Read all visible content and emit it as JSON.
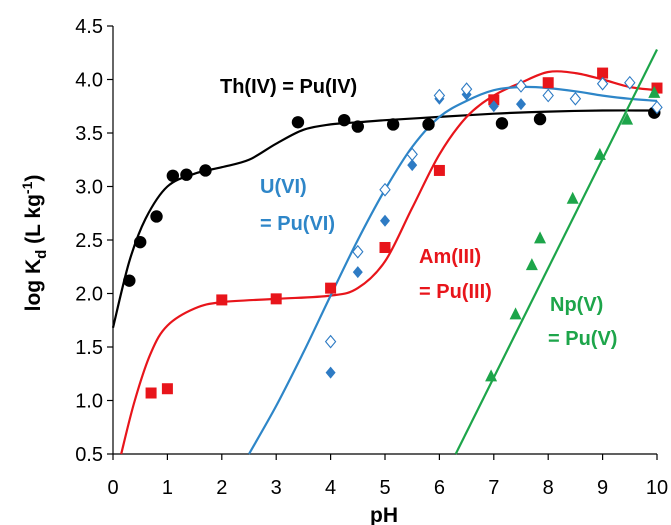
{
  "chart_data": {
    "type": "scatter",
    "title": "",
    "xlabel": "pH",
    "ylabel_main": "log K",
    "ylabel_sub": "d",
    "ylabel_unit_open": " (L kg",
    "ylabel_sup": "-1",
    "ylabel_unit_close": ")",
    "xlim": [
      0,
      10
    ],
    "ylim": [
      0.5,
      4.5
    ],
    "xticks": [
      0,
      1,
      2,
      3,
      4,
      5,
      6,
      7,
      8,
      9,
      10
    ],
    "xtick_labels": [
      "0",
      "1",
      "2",
      "3",
      "4",
      "5",
      "6",
      "7",
      "8",
      "9",
      "10"
    ],
    "yticks": [
      0.5,
      1.0,
      1.5,
      2.0,
      2.5,
      3.0,
      3.5,
      4.0,
      4.5
    ],
    "ytick_labels": [
      "0.5",
      "1.0",
      "1.5",
      "2.0",
      "2.5",
      "3.0",
      "3.5",
      "4.0",
      "4.5"
    ],
    "grid": false,
    "legend": "none",
    "annotations": [
      {
        "text": "Th(IV) = Pu(IV)",
        "color": "#000000"
      },
      {
        "text": "U(VI)",
        "color": "#2E86C8"
      },
      {
        "text": "= Pu(VI)",
        "color": "#2E86C8"
      },
      {
        "text": "Am(III)",
        "color": "#E8151B"
      },
      {
        "text": "= Pu(III)",
        "color": "#E8151B"
      },
      {
        "text": "Np(V)",
        "color": "#1DA54A"
      },
      {
        "text": "= Pu(V)",
        "color": "#1DA54A"
      }
    ],
    "series": [
      {
        "key": "th",
        "marker": "circle-filled",
        "color": "#000000",
        "points": [
          [
            0.3,
            2.12
          ],
          [
            0.5,
            2.48
          ],
          [
            0.8,
            2.72
          ],
          [
            1.1,
            3.1
          ],
          [
            1.35,
            3.11
          ],
          [
            1.7,
            3.15
          ],
          [
            3.4,
            3.6
          ],
          [
            4.25,
            3.62
          ],
          [
            4.5,
            3.56
          ],
          [
            5.15,
            3.58
          ],
          [
            5.8,
            3.58
          ],
          [
            7.15,
            3.59
          ],
          [
            7.85,
            3.63
          ],
          [
            9.95,
            3.69
          ]
        ],
        "fit": [
          [
            0,
            1.68
          ],
          [
            0.3,
            2.3
          ],
          [
            0.6,
            2.7
          ],
          [
            1.0,
            3.0
          ],
          [
            1.5,
            3.12
          ],
          [
            2.0,
            3.18
          ],
          [
            2.5,
            3.25
          ],
          [
            3.0,
            3.4
          ],
          [
            3.5,
            3.53
          ],
          [
            4.0,
            3.58
          ],
          [
            4.5,
            3.6
          ],
          [
            5.0,
            3.62
          ],
          [
            6.0,
            3.65
          ],
          [
            7.0,
            3.68
          ],
          [
            8.0,
            3.7
          ],
          [
            9.0,
            3.71
          ],
          [
            10.0,
            3.71
          ]
        ]
      },
      {
        "key": "am",
        "marker": "square-filled",
        "color": "#E8151B",
        "points": [
          [
            0.7,
            1.07
          ],
          [
            1.0,
            1.11
          ],
          [
            2.0,
            1.94
          ],
          [
            3.0,
            1.95
          ],
          [
            4.0,
            2.05
          ],
          [
            5.0,
            2.43
          ],
          [
            6.0,
            3.15
          ],
          [
            7.0,
            3.81
          ],
          [
            8.0,
            3.97
          ],
          [
            9.0,
            4.06
          ],
          [
            10.0,
            3.92
          ]
        ],
        "fit": [
          [
            0.15,
            0.5
          ],
          [
            0.4,
            1.0
          ],
          [
            0.7,
            1.45
          ],
          [
            1.0,
            1.7
          ],
          [
            1.5,
            1.86
          ],
          [
            2.0,
            1.92
          ],
          [
            3.0,
            1.95
          ],
          [
            4.0,
            1.98
          ],
          [
            4.5,
            2.05
          ],
          [
            5.0,
            2.3
          ],
          [
            5.5,
            2.8
          ],
          [
            6.0,
            3.3
          ],
          [
            6.5,
            3.65
          ],
          [
            7.0,
            3.85
          ],
          [
            7.5,
            3.97
          ],
          [
            8.0,
            4.07
          ],
          [
            8.5,
            4.06
          ],
          [
            9.0,
            4.0
          ],
          [
            9.5,
            3.93
          ],
          [
            10.0,
            3.9
          ]
        ]
      },
      {
        "key": "u_filled",
        "marker": "diamond-filled",
        "color": "#2E7BC4",
        "points": [
          [
            4.0,
            1.26
          ],
          [
            4.5,
            2.2
          ],
          [
            5.0,
            2.68
          ],
          [
            5.5,
            3.2
          ],
          [
            6.0,
            3.82
          ],
          [
            6.5,
            3.86
          ],
          [
            7.0,
            3.75
          ],
          [
            7.5,
            3.77
          ]
        ],
        "fit": []
      },
      {
        "key": "u_open",
        "marker": "diamond-open",
        "color": "#2E7BC4",
        "points": [
          [
            4.0,
            1.55
          ],
          [
            4.5,
            2.39
          ],
          [
            5.0,
            2.97
          ],
          [
            5.5,
            3.3
          ],
          [
            6.0,
            3.85
          ],
          [
            6.5,
            3.91
          ],
          [
            7.5,
            3.94
          ],
          [
            8.0,
            3.85
          ],
          [
            8.5,
            3.82
          ],
          [
            9.0,
            3.96
          ],
          [
            9.5,
            3.97
          ],
          [
            10.0,
            3.74
          ]
        ],
        "fit": [
          [
            2.5,
            0.5
          ],
          [
            3.0,
            0.95
          ],
          [
            3.5,
            1.45
          ],
          [
            4.0,
            1.98
          ],
          [
            4.5,
            2.5
          ],
          [
            5.0,
            2.97
          ],
          [
            5.5,
            3.37
          ],
          [
            6.0,
            3.65
          ],
          [
            6.5,
            3.8
          ],
          [
            7.0,
            3.9
          ],
          [
            7.5,
            3.93
          ],
          [
            8.0,
            3.92
          ],
          [
            8.5,
            3.89
          ],
          [
            9.0,
            3.85
          ],
          [
            9.5,
            3.82
          ],
          [
            10.0,
            3.8
          ]
        ]
      },
      {
        "key": "np",
        "marker": "triangle-filled",
        "color": "#1DA54A",
        "points": [
          [
            6.95,
            1.23
          ],
          [
            7.4,
            1.81
          ],
          [
            7.7,
            2.27
          ],
          [
            7.85,
            2.52
          ],
          [
            8.45,
            2.89
          ],
          [
            8.95,
            3.3
          ],
          [
            9.45,
            3.63
          ],
          [
            9.95,
            3.88
          ]
        ],
        "fit": [
          [
            6.3,
            0.5
          ],
          [
            10.0,
            4.28
          ]
        ]
      }
    ]
  }
}
